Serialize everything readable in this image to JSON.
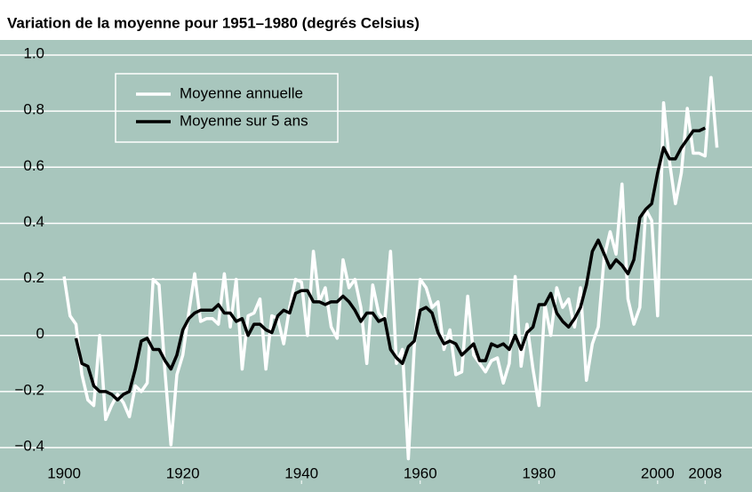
{
  "chart_data": {
    "type": "line",
    "title": "Variation de la moyenne pour 1951–1980 (degrés Celsius)",
    "x": [
      1900,
      1901,
      1902,
      1903,
      1904,
      1905,
      1906,
      1907,
      1908,
      1909,
      1910,
      1911,
      1912,
      1913,
      1914,
      1915,
      1916,
      1917,
      1918,
      1919,
      1920,
      1921,
      1922,
      1923,
      1924,
      1925,
      1926,
      1927,
      1928,
      1929,
      1930,
      1931,
      1932,
      1933,
      1934,
      1935,
      1936,
      1937,
      1938,
      1939,
      1940,
      1941,
      1942,
      1943,
      1944,
      1945,
      1946,
      1947,
      1948,
      1949,
      1950,
      1951,
      1952,
      1953,
      1954,
      1955,
      1956,
      1957,
      1958,
      1959,
      1960,
      1961,
      1962,
      1963,
      1964,
      1965,
      1966,
      1967,
      1968,
      1969,
      1970,
      1971,
      1972,
      1973,
      1974,
      1975,
      1976,
      1977,
      1978,
      1979,
      1980,
      1981,
      1982,
      1983,
      1984,
      1985,
      1986,
      1987,
      1988,
      1989,
      1990,
      1991,
      1992,
      1993,
      1994,
      1995,
      1996,
      1997,
      1998,
      1999,
      2000,
      2001,
      2002,
      2003,
      2004,
      2005,
      2006,
      2007,
      2008,
      2009,
      2010
    ],
    "series": [
      {
        "name": "Moyenne annuelle",
        "color": "#ffffff",
        "values": [
          0.21,
          0.07,
          0.04,
          -0.14,
          -0.23,
          -0.25,
          0,
          -0.3,
          -0.25,
          -0.21,
          -0.24,
          -0.29,
          -0.18,
          -0.2,
          -0.17,
          0.2,
          0.18,
          -0.13,
          -0.39,
          -0.14,
          -0.07,
          0.08,
          0.22,
          0.05,
          0.06,
          0.06,
          0.04,
          0.22,
          0.03,
          0.2,
          -0.12,
          0.07,
          0.08,
          0.13,
          -0.12,
          0.07,
          0.06,
          -0.03,
          0.1,
          0.2,
          0.19,
          0,
          0.3,
          0.12,
          0.17,
          0.03,
          -0.01,
          0.27,
          0.17,
          0.2,
          0.1,
          -0.1,
          0.18,
          0.08,
          0.05,
          0.3,
          -0.1,
          -0.05,
          -0.44,
          -0.04,
          0.2,
          0.17,
          0.1,
          0.12,
          -0.05,
          0.02,
          -0.14,
          -0.13,
          0.14,
          -0.07,
          -0.1,
          -0.13,
          -0.09,
          -0.08,
          -0.17,
          -0.1,
          0.21,
          -0.11,
          0.04,
          -0.12,
          -0.25,
          0.11,
          0,
          0.17,
          0.1,
          0.13,
          0.03,
          0.17,
          -0.16,
          -0.03,
          0.03,
          0.28,
          0.37,
          0.29,
          0.54,
          0.13,
          0.04,
          0.1,
          0.45,
          0.41,
          0.07,
          0.83,
          0.62,
          0.47,
          0.58,
          0.81,
          0.65,
          0.65,
          0.64,
          0.92,
          0.67
        ]
      },
      {
        "name": "Moyenne sur 5 ans",
        "color": "#000000",
        "values": [
          null,
          null,
          -0.01,
          -0.1,
          -0.11,
          -0.18,
          -0.2,
          -0.2,
          -0.21,
          -0.23,
          -0.21,
          -0.2,
          -0.12,
          -0.02,
          -0.01,
          -0.05,
          -0.05,
          -0.09,
          -0.12,
          -0.07,
          0.02,
          0.06,
          0.08,
          0.09,
          0.09,
          0.09,
          0.11,
          0.08,
          0.08,
          0.05,
          0.06,
          0,
          0.04,
          0.04,
          0.02,
          0.01,
          0.07,
          0.09,
          0.08,
          0.15,
          0.16,
          0.16,
          0.12,
          0.12,
          0.11,
          0.12,
          0.12,
          0.14,
          0.12,
          0.09,
          0.05,
          0.08,
          0.08,
          0.05,
          0.06,
          -0.05,
          -0.08,
          -0.1,
          -0.04,
          -0.02,
          0.09,
          0.1,
          0.08,
          0.01,
          -0.03,
          -0.02,
          -0.03,
          -0.07,
          -0.05,
          -0.03,
          -0.09,
          -0.09,
          -0.03,
          -0.04,
          -0.03,
          -0.05,
          0,
          -0.05,
          0.01,
          0.03,
          0.11,
          0.11,
          0.15,
          0.08,
          0.05,
          0.03,
          0.06,
          0.1,
          0.18,
          0.3,
          0.34,
          0.29,
          0.24,
          0.27,
          0.25,
          0.22,
          0.27,
          0.42,
          0.45,
          0.47,
          0.58,
          0.67,
          0.63,
          0.63,
          0.67,
          0.7,
          0.73,
          0.73,
          0.74,
          null,
          null
        ]
      }
    ],
    "xlim": [
      1889.2,
      2015.9
    ],
    "xticks": [
      1900,
      1920,
      1940,
      1960,
      1980,
      2000,
      2008
    ],
    "ylim": [
      -0.53,
      1.054
    ],
    "yticks": [
      {
        "value": -0.4,
        "label": "−0.4"
      },
      {
        "value": -0.2,
        "label": "−0.2"
      },
      0,
      0.2,
      0.4,
      0.6,
      0.8,
      {
        "value": 1,
        "label": "1.0"
      }
    ],
    "grid": true,
    "legend": "upper left"
  }
}
